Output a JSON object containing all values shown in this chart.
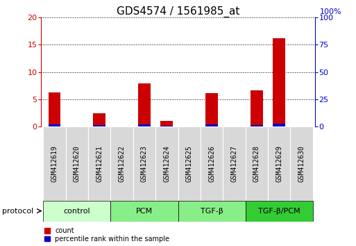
{
  "title": "GDS4574 / 1561985_at",
  "samples": [
    "GSM412619",
    "GSM412620",
    "GSM412621",
    "GSM412622",
    "GSM412623",
    "GSM412624",
    "GSM412625",
    "GSM412626",
    "GSM412627",
    "GSM412628",
    "GSM412629",
    "GSM412630"
  ],
  "count": [
    6.3,
    0.0,
    2.5,
    0.0,
    7.9,
    1.0,
    0.0,
    6.1,
    0.0,
    6.6,
    16.1,
    0.0
  ],
  "percentile_left": [
    0.4,
    0.0,
    0.35,
    0.0,
    0.45,
    0.2,
    0.0,
    0.4,
    0.0,
    0.35,
    0.5,
    0.0
  ],
  "groups": [
    {
      "label": "control",
      "start": 0,
      "end": 3,
      "color": "#ccffcc"
    },
    {
      "label": "PCM",
      "start": 3,
      "end": 6,
      "color": "#88ee88"
    },
    {
      "label": "TGF-β",
      "start": 6,
      "end": 9,
      "color": "#88ee88"
    },
    {
      "label": "TGF-β/PCM",
      "start": 9,
      "end": 12,
      "color": "#33cc33"
    }
  ],
  "ylim_left": [
    0,
    20
  ],
  "ylim_right": [
    0,
    100
  ],
  "yticks_left": [
    0,
    5,
    10,
    15,
    20
  ],
  "yticks_right": [
    0,
    25,
    50,
    75,
    100
  ],
  "bar_color_red": "#cc0000",
  "bar_color_blue": "#0000cc",
  "bar_width": 0.55,
  "color_left": "#cc0000",
  "color_right": "#0000cc",
  "title_fontsize": 11,
  "sample_fontsize": 7,
  "group_fontsize": 8,
  "legend_fontsize": 7,
  "grid_color": "#000000",
  "sample_box_color": "#d8d8d8",
  "protocol_label": "protocol"
}
